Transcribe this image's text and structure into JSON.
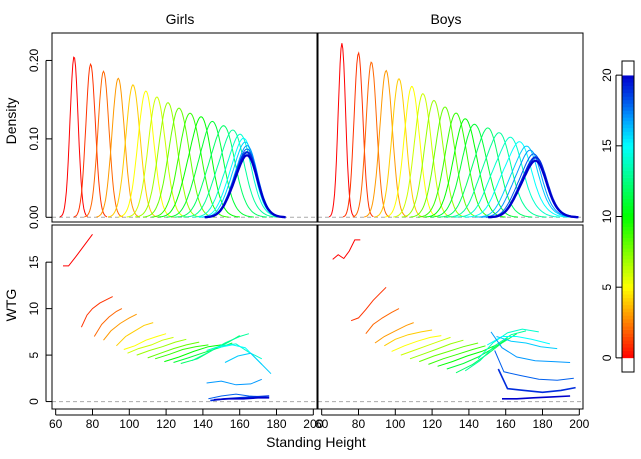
{
  "panels_top": [
    {
      "title": "Girls",
      "peak_max": 0.205,
      "peak_min": 0.078,
      "broad_start_age": 10
    },
    {
      "title": "Boys",
      "peak_max": 0.222,
      "peak_min": 0.071,
      "broad_start_age": 12
    }
  ],
  "chart_data": {
    "type": "line",
    "xlabel": "Standing Height",
    "top_ylabel": "Density",
    "bottom_ylabel": "WTG",
    "x_ticks": [
      60,
      80,
      100,
      120,
      140,
      160,
      180,
      200
    ],
    "x_tick_labels": [
      "60",
      "80",
      "100",
      "120",
      "140",
      "160",
      "180",
      "200"
    ],
    "xlim": [
      58,
      202
    ],
    "density_ylim": [
      -0.006,
      0.235
    ],
    "density_ticks": [
      0.0,
      0.1,
      0.2
    ],
    "density_tick_labels": [
      "0.00",
      "0.10",
      "0.20"
    ],
    "wtg_ylim": [
      -0.8,
      19.0
    ],
    "wtg_ticks": [
      0,
      5,
      10,
      15
    ],
    "wtg_tick_labels": [
      "0",
      "5",
      "10",
      "15"
    ],
    "colorbar": {
      "min": -1,
      "max": 21,
      "ticks": [
        0,
        5,
        10,
        15,
        20
      ],
      "tick_labels": [
        "0",
        "5",
        "10",
        "15",
        "20"
      ],
      "palette": "rainbow red-to-blue"
    },
    "panels": [
      {
        "name": "Girls",
        "mean_height_by_age": [
          70,
          79,
          86,
          94,
          102,
          109,
          115,
          121,
          127,
          133,
          138,
          144,
          150,
          155,
          159,
          161,
          162,
          163,
          163,
          163,
          163
        ],
        "sd_by_age": [
          2.2,
          2.6,
          3.0,
          3.4,
          3.9,
          4.3,
          4.7,
          5.1,
          5.6,
          6.0,
          6.4,
          6.8,
          7.2,
          7.3,
          7.0,
          6.6,
          6.4,
          6.3,
          6.3,
          6.3,
          6.3
        ],
        "wtg_curves": [
          {
            "age": 0,
            "x": [
              64,
              67,
              71,
              74,
              77,
              80
            ],
            "y": [
              14.6,
              14.6,
              15.6,
              16.4,
              17.2,
              18.0
            ]
          },
          {
            "age": 1,
            "x": [
              74,
              77,
              80,
              84,
              88,
              91
            ],
            "y": [
              8.0,
              9.3,
              10.0,
              10.6,
              11.0,
              11.3
            ]
          },
          {
            "age": 2,
            "x": [
              81,
              85,
              89,
              93,
              96
            ],
            "y": [
              7.0,
              8.3,
              9.1,
              9.7,
              10.0
            ]
          },
          {
            "age": 3,
            "x": [
              86,
              90,
              95,
              100,
              104
            ],
            "y": [
              6.6,
              7.6,
              8.4,
              9.0,
              9.4
            ]
          },
          {
            "age": 4,
            "x": [
              93,
              98,
              103,
              108,
              113
            ],
            "y": [
              6.0,
              7.0,
              7.6,
              8.2,
              8.5
            ]
          },
          {
            "age": 5,
            "x": [
              97,
              103,
              109,
              115,
              120
            ],
            "y": [
              5.6,
              6.0,
              6.6,
              7.0,
              7.3
            ]
          },
          {
            "age": 6,
            "x": [
              99,
              105,
              112,
              118,
              124
            ],
            "y": [
              5.2,
              5.7,
              6.1,
              6.6,
              6.9
            ]
          },
          {
            "age": 7,
            "x": [
              104,
              111,
              118,
              125,
              131
            ],
            "y": [
              5.0,
              5.5,
              5.9,
              6.4,
              6.7
            ]
          },
          {
            "age": 8,
            "x": [
              110,
              117,
              124,
              131,
              138
            ],
            "y": [
              4.7,
              5.2,
              5.7,
              6.1,
              6.4
            ]
          },
          {
            "age": 9,
            "x": [
              114,
              122,
              129,
              136,
              143
            ],
            "y": [
              4.6,
              5.1,
              5.6,
              5.9,
              6.1
            ]
          },
          {
            "age": 10,
            "x": [
              119,
              127,
              135,
              143,
              150
            ],
            "y": [
              4.3,
              4.8,
              5.4,
              5.9,
              6.1
            ]
          },
          {
            "age": 11,
            "x": [
              124,
              132,
              141,
              149,
              156
            ],
            "y": [
              4.2,
              4.7,
              5.3,
              5.8,
              6.3
            ]
          },
          {
            "age": 12,
            "x": [
              128,
              137,
              146,
              154,
              160
            ],
            "y": [
              4.1,
              4.6,
              5.6,
              6.4,
              7.1
            ]
          },
          {
            "age": 13,
            "x": [
              134,
              143,
              152,
              160,
              165
            ],
            "y": [
              4.4,
              5.3,
              6.3,
              7.0,
              7.3
            ]
          },
          {
            "age": 14,
            "x": [
              142,
              150,
              158,
              165,
              172
            ],
            "y": [
              5.5,
              6.0,
              6.2,
              5.3,
              4.6
            ]
          },
          {
            "age": 15,
            "x": [
              148,
              156,
              163,
              168,
              172
            ],
            "y": [
              5.8,
              6.1,
              5.8,
              4.8,
              4.0
            ]
          },
          {
            "age": 16,
            "x": [
              152,
              159,
              166,
              172,
              177
            ],
            "y": [
              4.2,
              4.9,
              5.2,
              4.0,
              3.0
            ]
          },
          {
            "age": 17,
            "x": [
              142,
              150,
              158,
              166,
              172
            ],
            "y": [
              2.0,
              2.2,
              1.8,
              1.9,
              2.4
            ]
          },
          {
            "age": 18,
            "x": [
              143,
              150,
              158,
              165,
              174
            ],
            "y": [
              0.3,
              0.6,
              0.8,
              0.6,
              0.5
            ]
          },
          {
            "age": 19,
            "x": [
              144,
              152,
              160,
              168,
              176
            ],
            "y": [
              0.1,
              0.3,
              0.4,
              0.5,
              0.6
            ]
          },
          {
            "age": 20,
            "x": [
              146,
              154,
              162,
              170,
              176
            ],
            "y": [
              0.2,
              0.3,
              0.3,
              0.4,
              0.4
            ]
          }
        ]
      },
      {
        "name": "Boys",
        "mean_height_by_age": [
          71,
          80,
          87,
          95,
          102,
          109,
          115,
          121,
          127,
          133,
          138,
          143,
          149,
          155,
          161,
          166,
          170,
          172,
          174,
          175,
          175
        ],
        "sd_by_age": [
          2.0,
          2.4,
          2.9,
          3.4,
          3.8,
          4.2,
          4.6,
          5.0,
          5.4,
          5.9,
          6.3,
          6.8,
          7.3,
          7.8,
          8.2,
          8.1,
          7.6,
          7.3,
          7.1,
          7.0,
          7.0
        ],
        "wtg_curves": [
          {
            "age": 0,
            "x": [
              66,
              69,
              72,
              75,
              78,
              81
            ],
            "y": [
              15.3,
              15.8,
              15.4,
              16.2,
              17.4,
              17.4
            ]
          },
          {
            "age": 1,
            "x": [
              76,
              80,
              84,
              88,
              92,
              95
            ],
            "y": [
              8.7,
              9.0,
              9.9,
              10.9,
              11.7,
              12.3
            ]
          },
          {
            "age": 2,
            "x": [
              84,
              88,
              93,
              98,
              102
            ],
            "y": [
              7.3,
              8.3,
              9.0,
              9.6,
              10.0
            ]
          },
          {
            "age": 3,
            "x": [
              89,
              94,
              100,
              106,
              110
            ],
            "y": [
              6.3,
              7.0,
              7.6,
              8.2,
              8.5
            ]
          },
          {
            "age": 4,
            "x": [
              94,
              100,
              107,
              114,
              120
            ],
            "y": [
              6.0,
              6.7,
              7.2,
              7.5,
              7.7
            ]
          },
          {
            "age": 5,
            "x": [
              98,
              105,
              112,
              119,
              125
            ],
            "y": [
              5.4,
              6.0,
              6.5,
              6.9,
              7.1
            ]
          },
          {
            "age": 6,
            "x": [
              103,
              110,
              117,
              124,
              130
            ],
            "y": [
              5.0,
              5.5,
              6.0,
              6.5,
              6.9
            ]
          },
          {
            "age": 7,
            "x": [
              108,
              115,
              122,
              130,
              137
            ],
            "y": [
              4.6,
              5.1,
              5.6,
              6.2,
              6.6
            ]
          },
          {
            "age": 8,
            "x": [
              113,
              121,
              129,
              137,
              145
            ],
            "y": [
              4.3,
              4.9,
              5.4,
              5.9,
              6.3
            ]
          },
          {
            "age": 9,
            "x": [
              118,
              126,
              134,
              142,
              149
            ],
            "y": [
              4.0,
              4.6,
              5.1,
              5.6,
              6.0
            ]
          },
          {
            "age": 10,
            "x": [
              123,
              131,
              139,
              147,
              155
            ],
            "y": [
              3.8,
              4.3,
              4.9,
              5.4,
              6.1
            ]
          },
          {
            "age": 11,
            "x": [
              128,
              137,
              145,
              153,
              161
            ],
            "y": [
              3.5,
              4.1,
              4.8,
              5.7,
              6.8
            ]
          },
          {
            "age": 12,
            "x": [
              133,
              142,
              150,
              158,
              166
            ],
            "y": [
              3.1,
              4.0,
              5.1,
              6.3,
              7.3
            ]
          },
          {
            "age": 13,
            "x": [
              138,
              146,
              154,
              163,
              171
            ],
            "y": [
              3.3,
              4.4,
              6.0,
              7.2,
              7.6
            ]
          },
          {
            "age": 14,
            "x": [
              145,
              153,
              161,
              169,
              178
            ],
            "y": [
              4.6,
              6.3,
              7.4,
              7.8,
              7.5
            ]
          },
          {
            "age": 15,
            "x": [
              150,
              158,
              166,
              174,
              184
            ],
            "y": [
              6.1,
              7.0,
              7.0,
              6.7,
              6.2
            ]
          },
          {
            "age": 16,
            "x": [
              155,
              163,
              171,
              179,
              188
            ],
            "y": [
              7.0,
              6.5,
              6.3,
              5.9,
              5.7
            ]
          },
          {
            "age": 17,
            "x": [
              152,
              158,
              166,
              176,
              186,
              195
            ],
            "y": [
              7.5,
              5.8,
              4.8,
              4.4,
              4.3,
              4.2
            ]
          },
          {
            "age": 18,
            "x": [
              154,
              159,
              168,
              178,
              188,
              197
            ],
            "y": [
              5.5,
              3.2,
              2.8,
              2.4,
              2.3,
              2.5
            ]
          },
          {
            "age": 19,
            "x": [
              156,
              161,
              170,
              180,
              190,
              198
            ],
            "y": [
              3.5,
              1.4,
              1.2,
              1.0,
              1.2,
              1.5
            ]
          },
          {
            "age": 20,
            "x": [
              158,
              166,
              175,
              185,
              195
            ],
            "y": [
              0.3,
              0.3,
              0.4,
              0.5,
              0.6
            ]
          }
        ]
      }
    ]
  }
}
